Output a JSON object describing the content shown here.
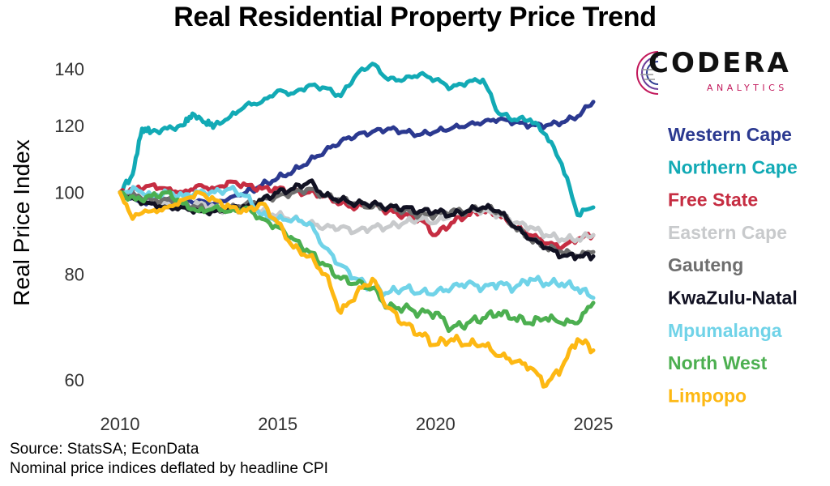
{
  "title": "Real Residential Property Price Trend",
  "logo": {
    "name": "CODERA",
    "sub": "ANALYTICS"
  },
  "source_line_1": "Source: StatsSA; EconData",
  "source_line_2": "Nominal price indices deflated by headline CPI",
  "chart_data": {
    "type": "line",
    "title": "Real Residential Property Price Trend",
    "xlabel": "",
    "ylabel": "Real Price Index",
    "y_scale": "log",
    "xlim": [
      2010,
      2025
    ],
    "ylim": [
      56,
      148
    ],
    "x_ticks": [
      2010,
      2015,
      2020,
      2025
    ],
    "y_ticks": [
      60,
      80,
      100,
      120,
      140
    ],
    "grid": false,
    "legend_position": "right",
    "series": [
      {
        "name": "Western Cape",
        "color": "#2b3990",
        "points": [
          [
            2010,
            100
          ],
          [
            2010.5,
            98
          ],
          [
            2011,
            97
          ],
          [
            2012,
            98
          ],
          [
            2013,
            97
          ],
          [
            2014,
            100
          ],
          [
            2014.5,
            102
          ],
          [
            2015,
            104
          ],
          [
            2015.5,
            106
          ],
          [
            2016,
            109
          ],
          [
            2016.5,
            112
          ],
          [
            2017,
            115
          ],
          [
            2017.5,
            117
          ],
          [
            2018,
            118
          ],
          [
            2018.5,
            119
          ],
          [
            2019,
            118
          ],
          [
            2019.5,
            117
          ],
          [
            2020,
            118
          ],
          [
            2020.5,
            119
          ],
          [
            2021,
            120
          ],
          [
            2021.5,
            121
          ],
          [
            2022,
            122
          ],
          [
            2022.5,
            121
          ],
          [
            2023,
            120
          ],
          [
            2023.5,
            120
          ],
          [
            2024,
            121
          ],
          [
            2024.5,
            123
          ],
          [
            2025,
            128
          ]
        ]
      },
      {
        "name": "Northern Cape",
        "color": "#12aab5",
        "points": [
          [
            2010,
            100
          ],
          [
            2010.4,
            105
          ],
          [
            2010.7,
            119
          ],
          [
            2011,
            118
          ],
          [
            2011.5,
            119
          ],
          [
            2012,
            120
          ],
          [
            2012.3,
            124
          ],
          [
            2012.7,
            121
          ],
          [
            2013,
            120
          ],
          [
            2013.5,
            123
          ],
          [
            2014,
            127
          ],
          [
            2014.5,
            128
          ],
          [
            2015,
            132
          ],
          [
            2015.5,
            131
          ],
          [
            2016,
            134
          ],
          [
            2016.5,
            133
          ],
          [
            2017,
            130
          ],
          [
            2017.5,
            138
          ],
          [
            2018,
            142
          ],
          [
            2018.5,
            136
          ],
          [
            2019,
            136
          ],
          [
            2019.5,
            138
          ],
          [
            2020,
            136
          ],
          [
            2020.5,
            133
          ],
          [
            2021,
            135
          ],
          [
            2021.5,
            136
          ],
          [
            2022,
            124
          ],
          [
            2022.5,
            122
          ],
          [
            2023,
            122
          ],
          [
            2023.5,
            117
          ],
          [
            2024,
            108
          ],
          [
            2024.5,
            94
          ],
          [
            2025,
            96
          ]
        ]
      },
      {
        "name": "Free State",
        "color": "#c62d42",
        "points": [
          [
            2010,
            100
          ],
          [
            2010.5,
            101
          ],
          [
            2011,
            102
          ],
          [
            2011.5,
            101
          ],
          [
            2012,
            100
          ],
          [
            2012.5,
            102
          ],
          [
            2013,
            101
          ],
          [
            2013.5,
            103
          ],
          [
            2014,
            102
          ],
          [
            2014.5,
            101
          ],
          [
            2015,
            101
          ],
          [
            2015.5,
            100
          ],
          [
            2016,
            100
          ],
          [
            2016.5,
            99
          ],
          [
            2017,
            97
          ],
          [
            2017.5,
            96
          ],
          [
            2018,
            97
          ],
          [
            2018.5,
            95
          ],
          [
            2019,
            94
          ],
          [
            2019.5,
            93
          ],
          [
            2020,
            89
          ],
          [
            2020.5,
            92
          ],
          [
            2021,
            94
          ],
          [
            2021.5,
            95
          ],
          [
            2022,
            94
          ],
          [
            2022.5,
            91
          ],
          [
            2023,
            89
          ],
          [
            2023.5,
            87
          ],
          [
            2024,
            86
          ],
          [
            2024.5,
            88
          ],
          [
            2025,
            89
          ]
        ]
      },
      {
        "name": "Eastern Cape",
        "color": "#c8cacc",
        "points": [
          [
            2010,
            100
          ],
          [
            2010.5,
            99
          ],
          [
            2011,
            98
          ],
          [
            2011.5,
            97
          ],
          [
            2012,
            96
          ],
          [
            2012.5,
            97
          ],
          [
            2013,
            96
          ],
          [
            2013.5,
            95
          ],
          [
            2014,
            96
          ],
          [
            2014.5,
            95
          ],
          [
            2015,
            94
          ],
          [
            2015.5,
            93
          ],
          [
            2016,
            92
          ],
          [
            2016.5,
            91
          ],
          [
            2017,
            91
          ],
          [
            2017.5,
            90
          ],
          [
            2018,
            91
          ],
          [
            2018.5,
            91
          ],
          [
            2019,
            92
          ],
          [
            2019.5,
            93
          ],
          [
            2020,
            92
          ],
          [
            2020.5,
            94
          ],
          [
            2021,
            95
          ],
          [
            2021.5,
            95
          ],
          [
            2022,
            94
          ],
          [
            2022.5,
            92
          ],
          [
            2023,
            91
          ],
          [
            2023.5,
            89
          ],
          [
            2024,
            88
          ],
          [
            2024.5,
            88
          ],
          [
            2025,
            89
          ]
        ]
      },
      {
        "name": "Gauteng",
        "color": "#6e6e6e",
        "points": [
          [
            2010,
            100
          ],
          [
            2010.5,
            99
          ],
          [
            2011,
            98
          ],
          [
            2011.5,
            98
          ],
          [
            2012,
            97
          ],
          [
            2012.5,
            96
          ],
          [
            2013,
            95
          ],
          [
            2013.5,
            96
          ],
          [
            2014,
            97
          ],
          [
            2014.5,
            98
          ],
          [
            2015,
            99
          ],
          [
            2015.5,
            100
          ],
          [
            2016,
            101
          ],
          [
            2016.5,
            99
          ],
          [
            2017,
            98
          ],
          [
            2017.5,
            97
          ],
          [
            2018,
            96
          ],
          [
            2018.5,
            96
          ],
          [
            2019,
            95
          ],
          [
            2019.5,
            94
          ],
          [
            2020,
            94
          ],
          [
            2020.5,
            95
          ],
          [
            2021,
            95
          ],
          [
            2021.5,
            96
          ],
          [
            2022,
            95
          ],
          [
            2022.5,
            91
          ],
          [
            2023,
            88
          ],
          [
            2023.5,
            86
          ],
          [
            2024,
            85
          ],
          [
            2024.5,
            84
          ],
          [
            2025,
            85
          ]
        ]
      },
      {
        "name": "KwaZulu-Natal",
        "color": "#111122",
        "points": [
          [
            2010,
            100
          ],
          [
            2010.5,
            98
          ],
          [
            2011,
            97
          ],
          [
            2011.5,
            96
          ],
          [
            2012,
            96
          ],
          [
            2012.5,
            95
          ],
          [
            2013,
            95
          ],
          [
            2013.5,
            96
          ],
          [
            2014,
            96
          ],
          [
            2014.5,
            98
          ],
          [
            2015,
            100
          ],
          [
            2015.5,
            101
          ],
          [
            2016,
            103
          ],
          [
            2016.5,
            99
          ],
          [
            2017,
            98
          ],
          [
            2017.5,
            97
          ],
          [
            2018,
            97
          ],
          [
            2018.5,
            96
          ],
          [
            2019,
            96
          ],
          [
            2019.5,
            95
          ],
          [
            2020,
            95
          ],
          [
            2020.5,
            94
          ],
          [
            2021,
            95
          ],
          [
            2021.5,
            96
          ],
          [
            2022,
            95
          ],
          [
            2022.5,
            91
          ],
          [
            2023,
            88
          ],
          [
            2023.5,
            86
          ],
          [
            2024,
            84
          ],
          [
            2024.5,
            84
          ],
          [
            2025,
            84
          ]
        ]
      },
      {
        "name": "Mpumalanga",
        "color": "#70d3e8",
        "points": [
          [
            2010,
            100
          ],
          [
            2010.5,
            101
          ],
          [
            2011,
            99
          ],
          [
            2011.5,
            100
          ],
          [
            2012,
            99
          ],
          [
            2012.5,
            100
          ],
          [
            2013,
            100
          ],
          [
            2013.5,
            101
          ],
          [
            2014,
            99
          ],
          [
            2014.5,
            94
          ],
          [
            2015,
            93
          ],
          [
            2015.5,
            93
          ],
          [
            2016,
            92
          ],
          [
            2016.5,
            86
          ],
          [
            2017,
            82
          ],
          [
            2017.5,
            79
          ],
          [
            2018,
            77
          ],
          [
            2018.5,
            76
          ],
          [
            2019,
            77
          ],
          [
            2019.5,
            76
          ],
          [
            2020,
            76
          ],
          [
            2020.5,
            77
          ],
          [
            2021,
            78
          ],
          [
            2021.5,
            77
          ],
          [
            2022,
            78
          ],
          [
            2022.5,
            77
          ],
          [
            2023,
            79
          ],
          [
            2023.5,
            78
          ],
          [
            2024,
            78
          ],
          [
            2024.5,
            77
          ],
          [
            2025,
            75
          ]
        ]
      },
      {
        "name": "North West",
        "color": "#4caf50",
        "points": [
          [
            2010,
            100
          ],
          [
            2010.5,
            98
          ],
          [
            2011,
            99
          ],
          [
            2011.5,
            100
          ],
          [
            2012,
            97
          ],
          [
            2012.5,
            95
          ],
          [
            2013,
            96
          ],
          [
            2013.5,
            95
          ],
          [
            2014,
            96
          ],
          [
            2014.5,
            93
          ],
          [
            2015,
            91
          ],
          [
            2015.5,
            88
          ],
          [
            2016,
            85
          ],
          [
            2016.5,
            82
          ],
          [
            2017,
            79
          ],
          [
            2017.5,
            78
          ],
          [
            2018,
            77
          ],
          [
            2018.5,
            73
          ],
          [
            2019,
            73
          ],
          [
            2019.5,
            72
          ],
          [
            2020,
            72
          ],
          [
            2020.5,
            69
          ],
          [
            2021,
            70
          ],
          [
            2021.5,
            71
          ],
          [
            2022,
            72
          ],
          [
            2022.5,
            71
          ],
          [
            2023,
            70
          ],
          [
            2023.5,
            71
          ],
          [
            2024,
            70
          ],
          [
            2024.5,
            70
          ],
          [
            2025,
            74
          ]
        ]
      },
      {
        "name": "Limpopo",
        "color": "#fdb813",
        "points": [
          [
            2010,
            100
          ],
          [
            2010.4,
            93
          ],
          [
            2011,
            95
          ],
          [
            2011.5,
            96
          ],
          [
            2012,
            98
          ],
          [
            2012.5,
            100
          ],
          [
            2013,
            98
          ],
          [
            2013.5,
            96
          ],
          [
            2014,
            95
          ],
          [
            2014.5,
            97
          ],
          [
            2015,
            92
          ],
          [
            2015.5,
            86
          ],
          [
            2016,
            84
          ],
          [
            2016.5,
            80
          ],
          [
            2017,
            72
          ],
          [
            2017.5,
            76
          ],
          [
            2018,
            79
          ],
          [
            2018.5,
            73
          ],
          [
            2019,
            70
          ],
          [
            2019.5,
            68
          ],
          [
            2020,
            66
          ],
          [
            2020.5,
            67
          ],
          [
            2021,
            66
          ],
          [
            2021.5,
            66
          ],
          [
            2022,
            64
          ],
          [
            2022.5,
            63
          ],
          [
            2023,
            62
          ],
          [
            2023.5,
            59
          ],
          [
            2024,
            62
          ],
          [
            2024.5,
            67
          ],
          [
            2025,
            65
          ]
        ]
      }
    ]
  }
}
